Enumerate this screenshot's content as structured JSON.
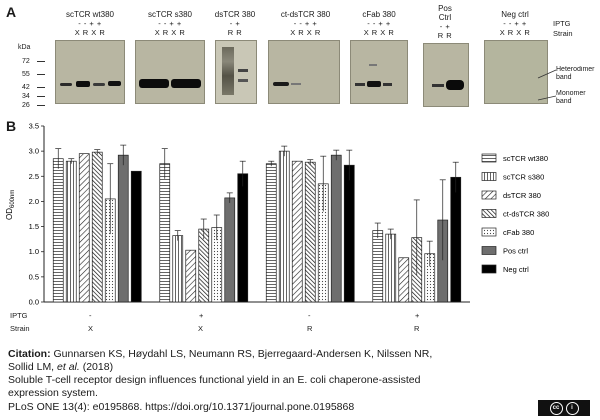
{
  "panel_a": {
    "label": "A",
    "kda_label": "kDa",
    "ladder": [
      "72",
      "55",
      "42",
      "34",
      "26"
    ],
    "row_labels": [
      "IPTG",
      "Strain"
    ],
    "blots": [
      {
        "title": "scTCR wt380",
        "signs": "-  -  +  +",
        "lanes": "X  R  X  R"
      },
      {
        "title": "scTCR s380",
        "signs": "-  -  +  +",
        "lanes": "X  R  X  R"
      },
      {
        "title": "dsTCR 380",
        "signs": "-  +",
        "lanes": "R  R"
      },
      {
        "title": "ct-dsTCR 380",
        "signs": "-  -  +  +",
        "lanes": "X  R  X  R"
      },
      {
        "title": "cFab 380",
        "signs": "-  -  +  +",
        "lanes": "X  R  X  R"
      },
      {
        "title": "Pos\nCtrl",
        "signs": "-  +",
        "lanes": "R  R"
      },
      {
        "title": "Neg ctrl",
        "signs": "-  -  +  +",
        "lanes": "X  R  X  R"
      }
    ],
    "heterodimer_label": "Heterodimer\nband",
    "monomer_label": "Monomer\nband"
  },
  "panel_b": {
    "label": "B",
    "ylabel": "OD",
    "ylabel_sub": "600nm",
    "iptg_row": {
      "label": "IPTG",
      "values": [
        "-",
        "+",
        "-",
        "+"
      ]
    },
    "strain_row": {
      "label": "Strain",
      "values": [
        "X",
        "X",
        "R",
        "R"
      ]
    }
  },
  "chart_data": {
    "type": "bar",
    "categories": [
      "- X",
      "+ X",
      "- R",
      "+ R"
    ],
    "ylim": [
      0,
      3.5
    ],
    "yticks": [
      "0.0",
      "0.5",
      "1.0",
      "1.5",
      "2.0",
      "2.5",
      "3.0",
      "3.5"
    ],
    "series": [
      {
        "name": "scTCR wt380",
        "values": [
          2.85,
          2.75,
          2.75,
          1.42
        ],
        "errors": [
          0.2,
          0.3,
          0.05,
          0.15
        ]
      },
      {
        "name": "scTCR s380",
        "values": [
          2.8,
          1.32,
          3.0,
          1.35
        ],
        "errors": [
          0.05,
          0.1,
          0.1,
          0.1
        ]
      },
      {
        "name": "dsTCR 380",
        "values": [
          2.95,
          1.03,
          2.8,
          0.88
        ],
        "errors": [
          0.0,
          0.0,
          0.0,
          0.0
        ]
      },
      {
        "name": "ct-dsTCR 380",
        "values": [
          2.98,
          1.45,
          2.78,
          1.28
        ],
        "errors": [
          0.05,
          0.2,
          0.05,
          0.75
        ]
      },
      {
        "name": "cFab 380",
        "values": [
          2.05,
          1.48,
          2.35,
          0.96
        ],
        "errors": [
          0.7,
          0.25,
          0.55,
          0.25
        ]
      },
      {
        "name": "Pos ctrl",
        "values": [
          2.92,
          2.07,
          2.92,
          1.63
        ],
        "errors": [
          0.2,
          0.1,
          0.1,
          0.8
        ]
      },
      {
        "name": "Neg ctrl",
        "values": [
          2.6,
          2.55,
          2.72,
          2.48
        ],
        "errors": [
          0.0,
          0.25,
          0.3,
          0.3
        ]
      }
    ],
    "colors": {
      "scTCR wt380": "#ffffff",
      "scTCR s380": "#ffffff",
      "dsTCR 380": "#ffffff",
      "ct-dsTCR 380": "#ffffff",
      "cFab 380": "#ffffff",
      "Pos ctrl": "#6e6e6e",
      "Neg ctrl": "#000000"
    },
    "legend_position": "right"
  },
  "citation": {
    "label": "Citation:",
    "authors_line1": "Gunnarsen KS, Høydahl LS, Neumann RS, Bjerregaard-Andersen K, Nilssen NR,",
    "authors_line2_a": "Sollid LM, ",
    "authors_line2_etal": "et al.",
    "authors_line2_b": " (2018)",
    "title_line1": "Soluble T-cell receptor design influences functional yield in an E. coli chaperone-assisted",
    "title_line2": "expression system.",
    "journal_line": "PLoS ONE 13(4): e0195868. https://doi.org/10.1371/journal.pone.0195868",
    "license_badge": "cc BY"
  }
}
